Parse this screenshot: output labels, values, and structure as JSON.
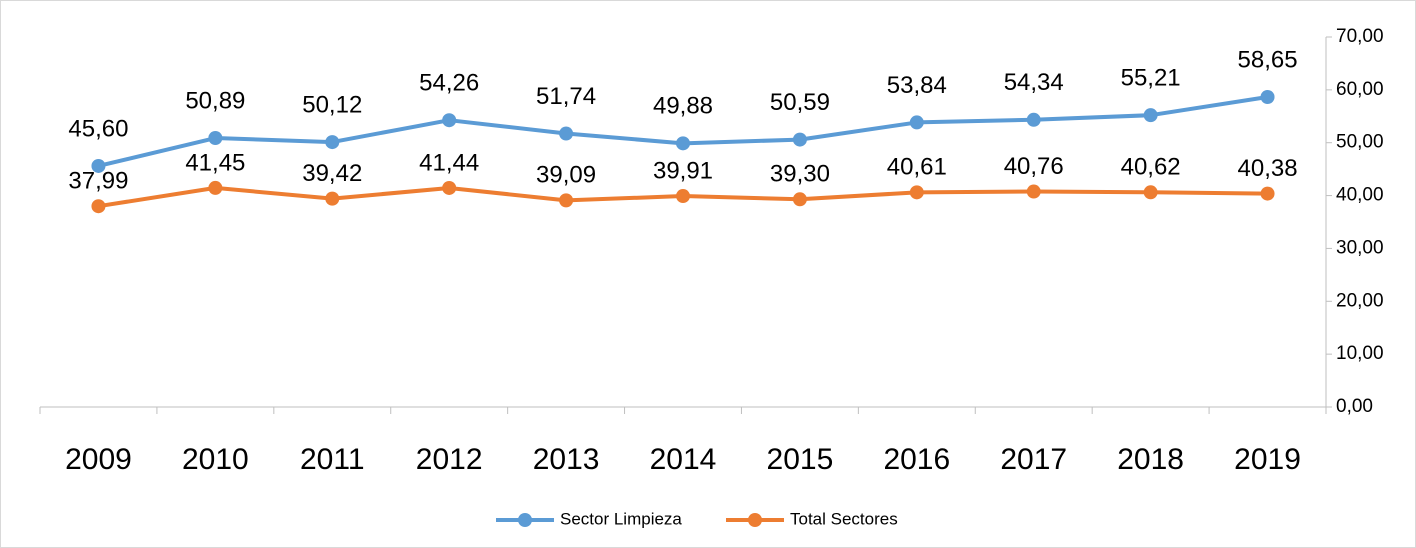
{
  "chart_data": {
    "type": "line",
    "categories": [
      "2009",
      "2010",
      "2011",
      "2012",
      "2013",
      "2014",
      "2015",
      "2016",
      "2017",
      "2018",
      "2019"
    ],
    "series": [
      {
        "name": "Sector Limpieza",
        "color": "#5b9bd5",
        "values": [
          45.6,
          50.89,
          50.12,
          54.26,
          51.74,
          49.88,
          50.59,
          53.84,
          54.34,
          55.21,
          58.65
        ],
        "value_labels": [
          "45,60",
          "50,89",
          "50,12",
          "54,26",
          "51,74",
          "49,88",
          "50,59",
          "53,84",
          "54,34",
          "55,21",
          "58,65"
        ]
      },
      {
        "name": "Total Sectores",
        "color": "#ed7d31",
        "values": [
          37.99,
          41.45,
          39.42,
          41.44,
          39.09,
          39.91,
          39.3,
          40.61,
          40.76,
          40.62,
          40.38
        ],
        "value_labels": [
          "37,99",
          "41,45",
          "39,42",
          "41,44",
          "39,09",
          "39,91",
          "39,30",
          "40,61",
          "40,76",
          "40,62",
          "40,38"
        ]
      }
    ],
    "ylim": [
      0,
      70
    ],
    "yticks": [
      {
        "value": 0,
        "label": "0,00"
      },
      {
        "value": 10,
        "label": "10,00"
      },
      {
        "value": 20,
        "label": "20,00"
      },
      {
        "value": 30,
        "label": "30,00"
      },
      {
        "value": 40,
        "label": "40,00"
      },
      {
        "value": 50,
        "label": "50,00"
      },
      {
        "value": 60,
        "label": "60,00"
      },
      {
        "value": 70,
        "label": "70,00"
      }
    ],
    "y_axis_side": "right",
    "grid": false,
    "legend": "bottom"
  }
}
